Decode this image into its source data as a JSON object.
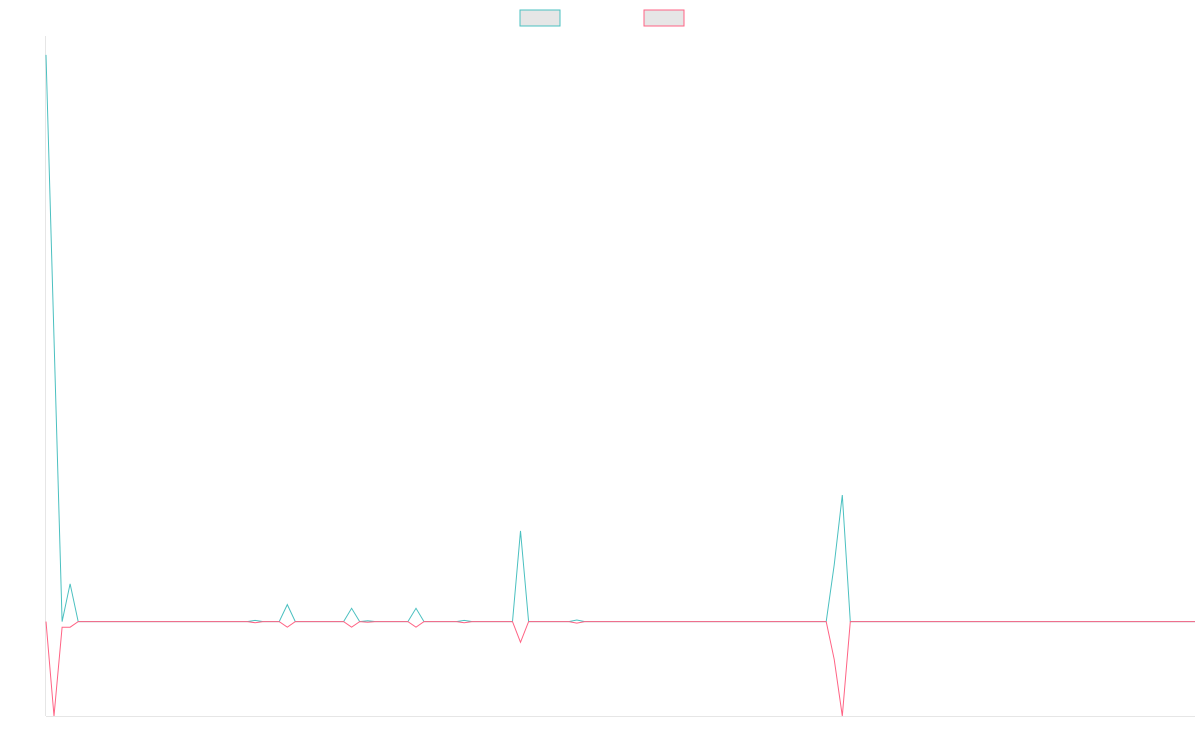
{
  "chart_data": {
    "type": "line",
    "title": "",
    "xlabel": "",
    "ylabel": "",
    "grid": false,
    "legend_position": "top-center",
    "x": [
      0.0,
      0.7,
      1.4,
      2.1,
      2.8,
      3.5,
      4.2,
      17.5,
      18.2,
      18.9,
      20.3,
      21.0,
      21.7,
      25.9,
      26.6,
      27.3,
      28.0,
      28.7,
      31.5,
      32.2,
      32.9,
      35.7,
      36.4,
      37.1,
      40.6,
      41.3,
      42.0,
      42.7,
      45.5,
      46.2,
      46.9,
      67.9,
      68.6,
      69.3,
      70.0,
      100.0
    ],
    "ylim": [
      -50,
      310
    ],
    "series": [
      {
        "name": "",
        "color": "#4bc0c0",
        "values": [
          300,
          150,
          0,
          20,
          0,
          0,
          0,
          0,
          0.6,
          0,
          0,
          9,
          0,
          0,
          7,
          0,
          0.4,
          0,
          0,
          7,
          0,
          0,
          0.6,
          0,
          0,
          48,
          0,
          0,
          0,
          0.8,
          0,
          0,
          30,
          67,
          0,
          0
        ]
      },
      {
        "name": "",
        "color": "#ff6384",
        "values": [
          0,
          -50,
          -3,
          -3,
          0,
          0,
          0,
          0,
          -0.6,
          0,
          0,
          -3,
          0,
          0,
          -3,
          0,
          -0.4,
          0,
          0,
          -3,
          0,
          0,
          -0.6,
          0,
          0,
          -11,
          0,
          0,
          0,
          -0.8,
          0,
          0,
          -20,
          -50,
          0,
          0
        ]
      }
    ],
    "legend": [
      {
        "label": "",
        "color": "#4bc0c0"
      },
      {
        "label": "",
        "color": "#ff6384"
      }
    ]
  }
}
